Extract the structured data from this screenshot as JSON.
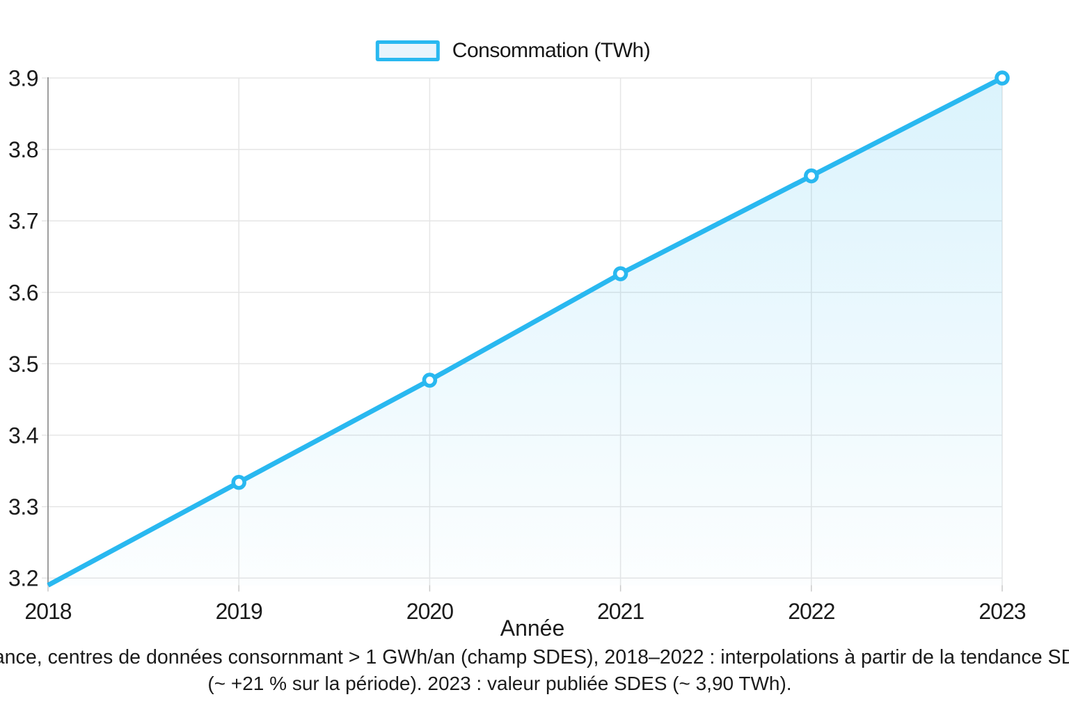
{
  "legend": {
    "label": "Consommation (TWh)"
  },
  "axes": {
    "x_label": "Année",
    "x_tick_labels": [
      "2018",
      "2019",
      "2020",
      "2021",
      "2022",
      "2023"
    ],
    "y_tick_labels": [
      "3.2",
      "3.3",
      "3.4",
      "3.5",
      "3.6",
      "3.7",
      "3.8",
      "3.9"
    ]
  },
  "caption": {
    "line1": "ance, centres de données consornmant > 1 GWh/an (champ SDES), 2018–2022 : interpolations à partir de la tendance SD",
    "line2": "(~ +21 % sur la période). 2023 : valeur publiée SDES (~ 3,90 TWh)."
  },
  "colors": {
    "accent": "#29b8f0",
    "legend_fill": "#e9f4fc",
    "marker_fill": "#ffffff",
    "grid": "#e5e5e5",
    "axis_spine": "#8e8e8e",
    "tick": "#c9c9c9",
    "text": "#1b1b1b"
  },
  "chart_data": {
    "type": "area",
    "title": "",
    "x": [
      2018,
      2019,
      2020,
      2021,
      2022,
      2023
    ],
    "series": [
      {
        "name": "Consommation (TWh)",
        "values": [
          3.19,
          3.334,
          3.477,
          3.626,
          3.763,
          3.9
        ]
      }
    ],
    "xlabel": "Année",
    "ylabel": "",
    "ylim": [
      3.19,
      3.9
    ],
    "yticks": [
      3.2,
      3.3,
      3.4,
      3.5,
      3.6,
      3.7,
      3.8,
      3.9
    ],
    "grid": true,
    "legend_position": "top-center",
    "marker": "circle-open",
    "first_point_marker_hidden": true,
    "area_gradient": true
  }
}
